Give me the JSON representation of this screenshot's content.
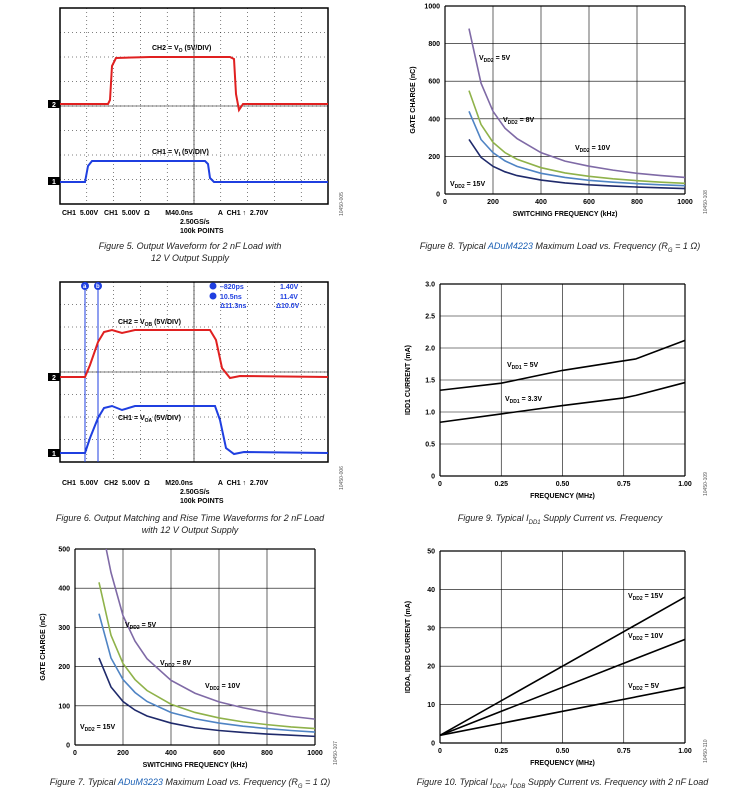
{
  "fig5": {
    "ch2_label": "CH2 = V",
    "ch2_sub": "O",
    "ch2_tail": " (5V/DIV)",
    "ch1_label": "CH1 = V",
    "ch1_sub": "I",
    "ch1_tail": " (5V/DIV)",
    "marker2": "2",
    "marker1": "1",
    "status_l1": "CH1  5.00V   CH1  5.00V  Ω        M40.0ns             A  CH1 ↑  2.70V",
    "status_l2": "2.50GS/s",
    "status_l3": "100k POINTS",
    "fig_id": "10450-005",
    "caption_l1": "Figure 5. Output Waveform for 2 nF Load with",
    "caption_l2": "12 V Output Supply"
  },
  "fig6": {
    "ch2_label": "CH2 = V",
    "ch2_sub": "OB",
    "ch2_tail": " (5V/DIV)",
    "ch1_label": "CH1 = V",
    "ch1_sub": "OA",
    "ch1_tail": " (5V/DIV)",
    "cursor_a": "a",
    "cursor_b": "b",
    "m_a_time": "–820ps",
    "m_a_volt": "1.40V",
    "m_b_time": "10.5ns",
    "m_b_volt": "11.4V",
    "m_d_time": "Δ11.3ns",
    "m_d_volt": "Δ10.0V",
    "marker2": "2",
    "marker1": "1",
    "status_l1": "CH1  5.00V   CH2  5.00V  Ω        M20.0ns             A  CH1 ↑  2.70V",
    "status_l2": "2.50GS/s",
    "status_l3": "100k POINTS",
    "fig_id": "10450-006",
    "caption_l1": "Figure 6. Output Matching and Rise Time Waveforms for 2 nF Load",
    "caption_l2": "with 12 V Output Supply"
  },
  "fig7": {
    "caption_pre": "Figure 7. Typical ",
    "caption_link": "ADuM3223",
    "caption_post": " Maximum Load vs. Frequency (R",
    "caption_sub": "G",
    "caption_end": " = 1 Ω)",
    "fig_id": "10450-107"
  },
  "fig8": {
    "caption_pre": "Figure 8. Typical ",
    "caption_link": "ADuM4223",
    "caption_post": " Maximum Load vs. Frequency (R",
    "caption_sub": "G",
    "caption_end": " = 1 Ω)",
    "fig_id": "10450-108"
  },
  "fig9": {
    "caption_pre": "Figure 9. Typical I",
    "caption_sub": "DD1",
    "caption_post": " Supply Current vs. Frequency",
    "fig_id": "10450-109"
  },
  "fig10": {
    "caption_pre": "Figure 10. Typical I",
    "caption_sub1": "DDA",
    "caption_mid": ", I",
    "caption_sub2": "DDB",
    "caption_post": " Supply Current vs. Frequency with 2 nF Load",
    "fig_id": "10450-110"
  },
  "chart_data": [
    {
      "id": "fig8",
      "type": "line",
      "xlabel": "SWITCHING FREQUENCY (kHz)",
      "ylabel": "GATE CHARGE (nC)",
      "xlim": [
        0,
        1000
      ],
      "ylim": [
        0,
        1000
      ],
      "xticks": [
        0,
        200,
        400,
        600,
        800,
        1000
      ],
      "yticks": [
        0,
        200,
        400,
        600,
        800,
        1000
      ],
      "grid": true,
      "series": [
        {
          "name": "VDD2 = 5V",
          "color": "#7f6aa6",
          "x": [
            100,
            150,
            200,
            250,
            300,
            400,
            500,
            600,
            700,
            800,
            900,
            1000
          ],
          "y": [
            880,
            590,
            440,
            350,
            295,
            220,
            175,
            148,
            127,
            110,
            98,
            88
          ]
        },
        {
          "name": "VDD2 = 8V",
          "color": "#8fb24a",
          "x": [
            100,
            150,
            200,
            250,
            300,
            400,
            500,
            600,
            700,
            800,
            900,
            1000
          ],
          "y": [
            550,
            370,
            275,
            220,
            185,
            140,
            112,
            94,
            81,
            71,
            63,
            57
          ]
        },
        {
          "name": "VDD2 = 10V",
          "color": "#4f84c4",
          "x": [
            100,
            150,
            200,
            250,
            300,
            400,
            500,
            600,
            700,
            800,
            900,
            1000
          ],
          "y": [
            440,
            290,
            220,
            176,
            147,
            110,
            88,
            73,
            63,
            55,
            49,
            44
          ]
        },
        {
          "name": "VDD2 = 15V",
          "color": "#1f2a6b",
          "x": [
            100,
            150,
            200,
            250,
            300,
            400,
            500,
            600,
            700,
            800,
            900,
            1000
          ],
          "y": [
            290,
            195,
            147,
            118,
            98,
            74,
            59,
            49,
            42,
            37,
            33,
            29
          ]
        }
      ],
      "labels": [
        {
          "text": "VDD2 = 5V",
          "main": "V",
          "sub": "DD2",
          "tail": " = 5V"
        },
        {
          "text": "VDD2 = 8V",
          "main": "V",
          "sub": "DD2",
          "tail": " = 8V"
        },
        {
          "text": "VDD2 = 10V",
          "main": "V",
          "sub": "DD2",
          "tail": " = 10V"
        },
        {
          "text": "VDD2 = 15V",
          "main": "V",
          "sub": "DD2",
          "tail": " = 15V"
        }
      ]
    },
    {
      "id": "fig7",
      "type": "line",
      "xlabel": "SWITCHING FREQUENCY (kHz)",
      "ylabel": "GATE CHARGE (nC)",
      "xlim": [
        0,
        1000
      ],
      "ylim": [
        0,
        500
      ],
      "xticks": [
        0,
        200,
        400,
        600,
        800,
        1000
      ],
      "yticks": [
        0,
        100,
        200,
        300,
        400,
        500
      ],
      "grid": true,
      "series": [
        {
          "name": "VDD2 = 5V",
          "color": "#7f6aa6",
          "x": [
            130,
            150,
            200,
            250,
            300,
            400,
            500,
            600,
            700,
            800,
            900,
            1000
          ],
          "y": [
            500,
            440,
            330,
            265,
            220,
            165,
            132,
            110,
            95,
            83,
            73,
            66
          ]
        },
        {
          "name": "VDD2 = 8V",
          "color": "#8fb24a",
          "x": [
            100,
            150,
            200,
            250,
            300,
            400,
            500,
            600,
            700,
            800,
            900,
            1000
          ],
          "y": [
            415,
            280,
            208,
            167,
            139,
            104,
            83,
            69,
            59,
            52,
            46,
            42
          ]
        },
        {
          "name": "VDD2 = 10V",
          "color": "#4f84c4",
          "x": [
            100,
            150,
            200,
            250,
            300,
            400,
            500,
            600,
            700,
            800,
            900,
            1000
          ],
          "y": [
            335,
            222,
            167,
            134,
            111,
            83,
            67,
            56,
            48,
            42,
            37,
            33
          ]
        },
        {
          "name": "VDD2 = 15V",
          "color": "#1f2a6b",
          "x": [
            100,
            150,
            200,
            250,
            300,
            400,
            500,
            600,
            700,
            800,
            900,
            1000
          ],
          "y": [
            222,
            148,
            111,
            89,
            74,
            56,
            44,
            37,
            32,
            28,
            25,
            22
          ]
        }
      ],
      "labels": [
        {
          "text": "VDD2 = 5V",
          "main": "V",
          "sub": "DD2",
          "tail": " = 5V"
        },
        {
          "text": "VDD2 = 8V",
          "main": "V",
          "sub": "DD2",
          "tail": " = 8V"
        },
        {
          "text": "VDD2 = 10V",
          "main": "V",
          "sub": "DD2",
          "tail": " = 10V"
        },
        {
          "text": "VDD2 = 15V",
          "main": "V",
          "sub": "DD2",
          "tail": " = 15V"
        }
      ]
    },
    {
      "id": "fig9",
      "type": "line",
      "xlabel": "FREQUENCY (MHz)",
      "ylabel": "IDD1 CURRENT (mA)",
      "xlim": [
        0,
        1.0
      ],
      "ylim": [
        0,
        3.0
      ],
      "xticks": [
        0,
        0.25,
        0.5,
        0.75,
        1.0
      ],
      "xticklabels": [
        "0",
        "0.25",
        "0.50",
        "0.75",
        "1.00"
      ],
      "yticks": [
        0,
        0.5,
        1.0,
        1.5,
        2.0,
        2.5,
        3.0
      ],
      "yticklabels": [
        "0",
        "0.5",
        "1.0",
        "1.5",
        "2.0",
        "2.5",
        "3.0"
      ],
      "grid": true,
      "series": [
        {
          "name": "VDD1 = 5V",
          "color": "#000000",
          "x": [
            0,
            0.25,
            0.5,
            0.75,
            0.8,
            1.0
          ],
          "y": [
            1.34,
            1.45,
            1.65,
            1.8,
            1.83,
            2.12
          ]
        },
        {
          "name": "VDD1 = 3.3V",
          "color": "#000000",
          "x": [
            0,
            0.25,
            0.5,
            0.75,
            0.8,
            1.0
          ],
          "y": [
            0.84,
            0.97,
            1.1,
            1.22,
            1.26,
            1.46
          ]
        }
      ],
      "labels": [
        {
          "text": "VDD1 = 5V",
          "main": "V",
          "sub": "DD1",
          "tail": " = 5V"
        },
        {
          "text": "VDD1 = 3.3V",
          "main": "V",
          "sub": "DD1",
          "tail": " = 3.3V"
        }
      ]
    },
    {
      "id": "fig10",
      "type": "line",
      "xlabel": "FREQUENCY (MHz)",
      "ylabel": "IDDA, IDDB CURRENT (mA)",
      "xlim": [
        0,
        1.0
      ],
      "ylim": [
        0,
        50
      ],
      "xticks": [
        0,
        0.25,
        0.5,
        0.75,
        1.0
      ],
      "xticklabels": [
        "0",
        "0.25",
        "0.50",
        "0.75",
        "1.00"
      ],
      "yticks": [
        0,
        10,
        20,
        30,
        40,
        50
      ],
      "yticklabels": [
        "0",
        "10",
        "20",
        "30",
        "40",
        "50"
      ],
      "grid": true,
      "series": [
        {
          "name": "VDD2 = 15V",
          "color": "#000000",
          "x": [
            0,
            1.0
          ],
          "y": [
            2,
            38
          ]
        },
        {
          "name": "VDD2 = 10V",
          "color": "#000000",
          "x": [
            0,
            1.0
          ],
          "y": [
            2,
            27
          ]
        },
        {
          "name": "VDD2 = 5V",
          "color": "#000000",
          "x": [
            0,
            1.0
          ],
          "y": [
            2,
            14.5
          ]
        }
      ],
      "labels": [
        {
          "text": "VDD2 = 15V",
          "main": "V",
          "sub": "DD2",
          "tail": " = 15V"
        },
        {
          "text": "VDD2 = 10V",
          "main": "V",
          "sub": "DD2",
          "tail": " = 10V"
        },
        {
          "text": "VDD2 = 5V",
          "main": "V",
          "sub": "DD2",
          "tail": " = 5V"
        }
      ]
    }
  ]
}
